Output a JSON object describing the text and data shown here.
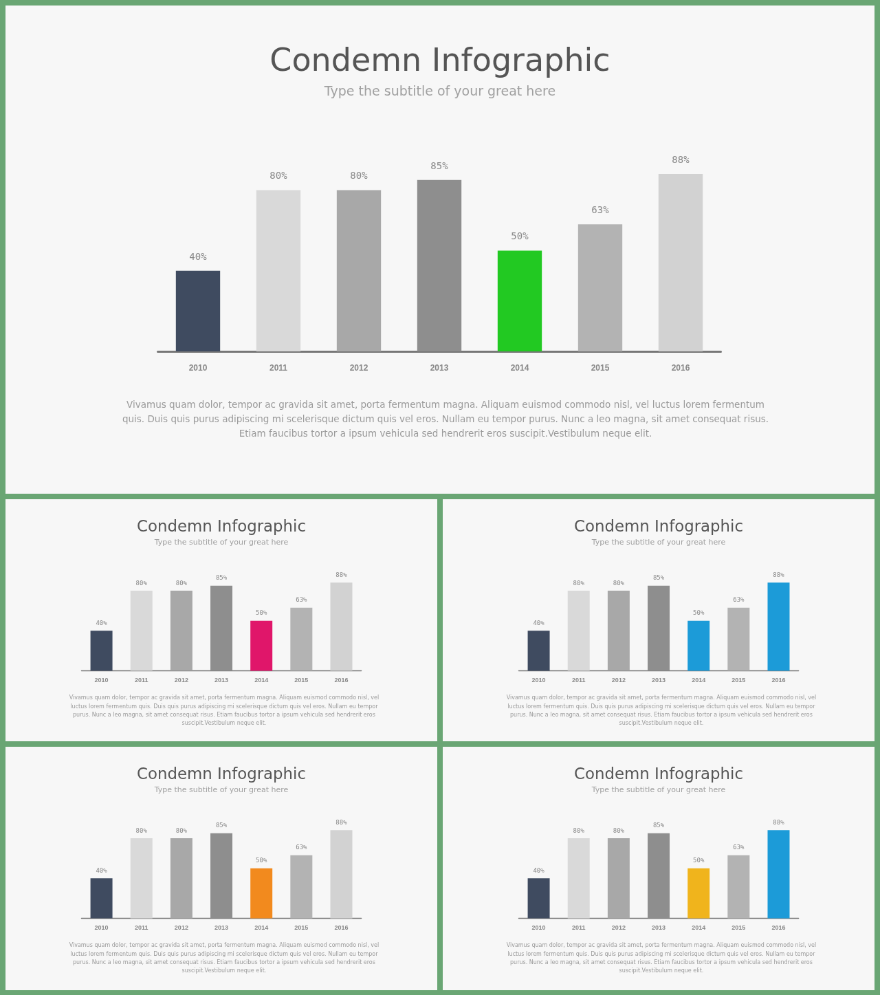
{
  "chart_data": [
    {
      "type": "bar",
      "title": "Condemn Infographic",
      "subtitle": "Type the subtitle of your great here",
      "annotations": [
        "Vivamus quam dolor, tempor ac gravida sit amet, porta fermentum magna. Aliquam euismod commodo nisl, vel luctus lorem fermentum quis. Duis quis purus adipiscing mi scelerisque dictum quis vel eros. Nullam eu tempor purus. Nunc a leo magna, sit amet consequat risus. Etiam faucibus tortor a ipsum vehicula sed hendrerit eros suscipit.Vestibulum neque elit."
      ],
      "categories": [
        "2010",
        "2011",
        "2012",
        "2013",
        "2014",
        "2015",
        "2016"
      ],
      "values": [
        40,
        80,
        80,
        85,
        50,
        63,
        88
      ],
      "colors": [
        "#3f4b60",
        "#d9d9d9",
        "#a8a8a8",
        "#8e8e8e",
        "#22c922",
        "#b3b3b3",
        "#d2d2d2"
      ],
      "value_labels": [
        "40%",
        "80%",
        "80%",
        "85%",
        "50%",
        "63%",
        "88%"
      ]
    },
    {
      "type": "bar",
      "title": "Condemn Infographic",
      "subtitle": "Type the subtitle of your great here",
      "annotations": [
        "Vivamus quam dolor, tempor ac gravida sit amet, porta fermentum magna. Aliquam euismod commodo nisl, vel luctus lorem fermentum quis. Duis quis purus adipiscing mi scelerisque dictum quis vel eros. Nullam eu tempor purus. Nunc a leo magna, sit amet consequat risus. Etiam faucibus tortor a ipsum vehicula sed hendrerit eros suscipit.Vestibulum neque elit."
      ],
      "categories": [
        "2010",
        "2011",
        "2012",
        "2013",
        "2014",
        "2015",
        "2016"
      ],
      "values": [
        40,
        80,
        80,
        85,
        50,
        63,
        88
      ],
      "colors": [
        "#3f4b60",
        "#d9d9d9",
        "#a8a8a8",
        "#8e8e8e",
        "#e0166a",
        "#b3b3b3",
        "#d2d2d2"
      ],
      "value_labels": [
        "40%",
        "80%",
        "80%",
        "85%",
        "50%",
        "63%",
        "88%"
      ]
    },
    {
      "type": "bar",
      "title": "Condemn Infographic",
      "subtitle": "Type the subtitle of your great here",
      "annotations": [
        "Vivamus quam dolor, tempor ac gravida sit amet, porta fermentum magna. Aliquam euismod commodo nisl, vel luctus lorem fermentum quis. Duis quis purus adipiscing mi scelerisque dictum quis vel eros. Nullam eu tempor purus. Nunc a leo magna, sit amet consequat risus. Etiam faucibus tortor a ipsum vehicula sed hendrerit eros suscipit.Vestibulum neque elit."
      ],
      "categories": [
        "2010",
        "2011",
        "2012",
        "2013",
        "2014",
        "2015",
        "2016"
      ],
      "values": [
        40,
        80,
        80,
        85,
        50,
        63,
        88
      ],
      "colors": [
        "#3f4b60",
        "#d9d9d9",
        "#a8a8a8",
        "#8e8e8e",
        "#1c9bd8",
        "#b3b3b3",
        "#1c9bd8"
      ],
      "value_labels": [
        "40%",
        "80%",
        "80%",
        "85%",
        "50%",
        "63%",
        "88%"
      ]
    },
    {
      "type": "bar",
      "title": "Condemn Infographic",
      "subtitle": "Type the subtitle of your great here",
      "annotations": [
        "Vivamus quam dolor, tempor ac gravida sit amet, porta fermentum magna. Aliquam euismod commodo nisl, vel luctus lorem fermentum quis. Duis quis purus adipiscing mi scelerisque dictum quis vel eros. Nullam eu tempor purus. Nunc a leo magna, sit amet consequat risus. Etiam faucibus tortor a ipsum vehicula sed hendrerit eros suscipit.Vestibulum neque elit."
      ],
      "categories": [
        "2010",
        "2011",
        "2012",
        "2013",
        "2014",
        "2015",
        "2016"
      ],
      "values": [
        40,
        80,
        80,
        85,
        50,
        63,
        88
      ],
      "colors": [
        "#3f4b60",
        "#d9d9d9",
        "#a8a8a8",
        "#8e8e8e",
        "#f28a1e",
        "#b3b3b3",
        "#d2d2d2"
      ],
      "value_labels": [
        "40%",
        "80%",
        "80%",
        "85%",
        "50%",
        "63%",
        "88%"
      ]
    },
    {
      "type": "bar",
      "title": "Condemn Infographic",
      "subtitle": "Type the subtitle of your great here",
      "annotations": [
        "Vivamus quam dolor, tempor ac gravida sit amet, porta fermentum magna. Aliquam euismod commodo nisl, vel luctus lorem fermentum quis. Duis quis purus adipiscing mi scelerisque dictum quis vel eros. Nullam eu tempor purus. Nunc a leo magna, sit amet consequat risus. Etiam faucibus tortor a ipsum vehicula sed hendrerit eros suscipit.Vestibulum neque elit."
      ],
      "categories": [
        "2010",
        "2011",
        "2012",
        "2013",
        "2014",
        "2015",
        "2016"
      ],
      "values": [
        40,
        80,
        80,
        85,
        50,
        63,
        88
      ],
      "colors": [
        "#3f4b60",
        "#d9d9d9",
        "#a8a8a8",
        "#8e8e8e",
        "#f0b41c",
        "#b3b3b3",
        "#1c9bd8"
      ],
      "value_labels": [
        "40%",
        "80%",
        "80%",
        "85%",
        "50%",
        "63%",
        "88%"
      ]
    }
  ]
}
